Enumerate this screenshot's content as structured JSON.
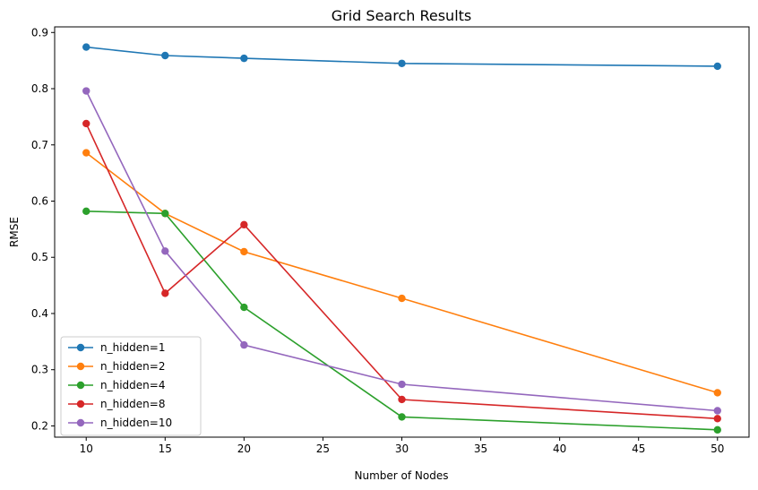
{
  "chart_data": {
    "type": "line",
    "title": "Grid Search Results",
    "xlabel": "Number of Nodes",
    "ylabel": "RMSE",
    "x": [
      10,
      15,
      20,
      30,
      50
    ],
    "xlim": [
      8,
      52
    ],
    "ylim": [
      0.18,
      0.91
    ],
    "xticks": [
      10,
      15,
      20,
      25,
      30,
      35,
      40,
      45,
      50
    ],
    "yticks": [
      0.2,
      0.3,
      0.4,
      0.5,
      0.6,
      0.7,
      0.8,
      0.9
    ],
    "grid": false,
    "legend_position": "lower-left",
    "series": [
      {
        "name": "n_hidden=1",
        "color": "#1f77b4",
        "values": [
          0.874,
          0.859,
          0.854,
          0.845,
          0.84
        ]
      },
      {
        "name": "n_hidden=2",
        "color": "#ff7f0e",
        "values": [
          0.686,
          0.578,
          0.51,
          0.427,
          0.259
        ]
      },
      {
        "name": "n_hidden=4",
        "color": "#2ca02c",
        "values": [
          0.582,
          0.578,
          0.411,
          0.216,
          0.193
        ]
      },
      {
        "name": "n_hidden=8",
        "color": "#d62728",
        "values": [
          0.738,
          0.436,
          0.558,
          0.247,
          0.213
        ]
      },
      {
        "name": "n_hidden=10",
        "color": "#9467bd",
        "values": [
          0.796,
          0.511,
          0.344,
          0.274,
          0.227
        ]
      }
    ]
  }
}
